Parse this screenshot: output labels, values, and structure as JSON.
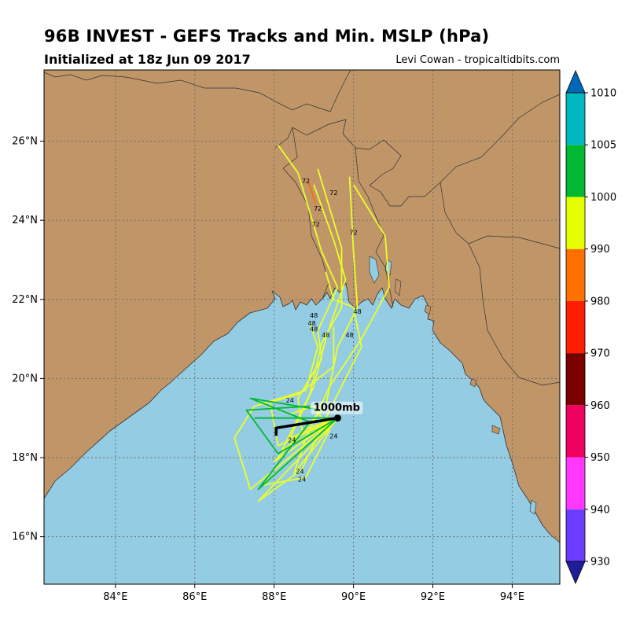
{
  "header": {
    "title": "96B INVEST - GEFS Tracks and Min. MSLP (hPa)",
    "subtitle": "Initialized at 18z Jun 09 2017",
    "credit": "Levi Cowan - tropicaltidbits.com"
  },
  "map": {
    "lon_range": [
      82.2,
      95.2
    ],
    "lat_range": [
      14.8,
      27.8
    ],
    "lon_ticks": [
      {
        "value": 84,
        "label": "84°E"
      },
      {
        "value": 86,
        "label": "86°E"
      },
      {
        "value": 88,
        "label": "88°E"
      },
      {
        "value": 90,
        "label": "90°E"
      },
      {
        "value": 92,
        "label": "92°E"
      },
      {
        "value": 94,
        "label": "94°E"
      }
    ],
    "lat_ticks": [
      {
        "value": 16,
        "label": "16°N"
      },
      {
        "value": 18,
        "label": "18°N"
      },
      {
        "value": 20,
        "label": "20°N"
      },
      {
        "value": 22,
        "label": "22°N"
      },
      {
        "value": 24,
        "label": "24°N"
      },
      {
        "value": 26,
        "label": "26°N"
      }
    ],
    "colors": {
      "land": "#c09669",
      "ocean": "#94cce3",
      "grid": "#6e6e6e",
      "coast": "#303030"
    }
  },
  "center": {
    "lon": 89.6,
    "lat": 19.0,
    "label": "1000mb"
  },
  "mean_track": [
    [
      89.6,
      19.0
    ],
    [
      88.05,
      18.75
    ],
    [
      88.05,
      18.55
    ]
  ],
  "tracks": [
    {
      "color": "#eaff2a",
      "points": [
        [
          89.6,
          19.0
        ],
        [
          88.7,
          18.7
        ],
        [
          88.6,
          19.5
        ],
        [
          89.2,
          20.5
        ],
        [
          89.1,
          21.2
        ],
        [
          89.6,
          22.3
        ],
        [
          89.2,
          23.2
        ],
        [
          88.9,
          24.2
        ],
        [
          88.6,
          25.2
        ],
        [
          88.1,
          25.9
        ]
      ]
    },
    {
      "color": "#eaff2a",
      "points": [
        [
          89.6,
          19.0
        ],
        [
          88.4,
          18.5
        ],
        [
          89.0,
          19.8
        ],
        [
          89.3,
          21.0
        ],
        [
          89.8,
          22.5
        ],
        [
          89.5,
          23.5
        ],
        [
          89.0,
          24.9
        ]
      ]
    },
    {
      "color": "#eaff2a",
      "points": [
        [
          89.6,
          19.0
        ],
        [
          88.2,
          18.2
        ],
        [
          88.9,
          19.6
        ],
        [
          89.2,
          20.9
        ],
        [
          89.7,
          21.8
        ],
        [
          89.7,
          23.3
        ],
        [
          89.1,
          25.3
        ]
      ]
    },
    {
      "color": "#eaff2a",
      "points": [
        [
          89.6,
          19.0
        ],
        [
          88.0,
          17.9
        ],
        [
          89.3,
          19.3
        ],
        [
          89.6,
          20.8
        ],
        [
          90.1,
          21.8
        ],
        [
          90.0,
          23.2
        ],
        [
          89.9,
          25.1
        ]
      ]
    },
    {
      "color": "#eaff2a",
      "points": [
        [
          89.6,
          19.0
        ],
        [
          88.5,
          17.6
        ],
        [
          88.8,
          18.5
        ],
        [
          89.4,
          19.8
        ],
        [
          90.2,
          21.0
        ],
        [
          90.9,
          22.3
        ],
        [
          90.8,
          23.6
        ],
        [
          90.0,
          24.9
        ]
      ]
    },
    {
      "color": "#eaff2a",
      "points": [
        [
          89.6,
          19.0
        ],
        [
          87.6,
          16.9
        ],
        [
          88.7,
          17.7
        ],
        [
          89.4,
          19.2
        ],
        [
          90.2,
          20.8
        ],
        [
          90.0,
          21.8
        ],
        [
          89.5,
          22.0
        ],
        [
          89.3,
          22.7
        ]
      ]
    },
    {
      "color": "#eaff2a",
      "points": [
        [
          89.6,
          19.0
        ],
        [
          87.4,
          17.2
        ],
        [
          87.0,
          18.5
        ],
        [
          87.5,
          19.3
        ],
        [
          88.8,
          19.7
        ],
        [
          89.1,
          20.8
        ],
        [
          88.9,
          21.4
        ]
      ]
    },
    {
      "color": "#eaff2a",
      "points": [
        [
          89.6,
          19.0
        ],
        [
          88.1,
          18.3
        ],
        [
          87.9,
          19.4
        ],
        [
          88.6,
          19.6
        ],
        [
          89.5,
          20.3
        ],
        [
          89.5,
          21.3
        ]
      ]
    },
    {
      "color": "#eaff2a",
      "points": [
        [
          89.6,
          19.0
        ],
        [
          87.7,
          17.3
        ],
        [
          88.8,
          17.5
        ],
        [
          89.4,
          18.7
        ],
        [
          89.0,
          19.3
        ],
        [
          88.4,
          19.1
        ],
        [
          87.6,
          19.4
        ]
      ]
    },
    {
      "color": "#00b832",
      "points": [
        [
          89.6,
          19.0
        ],
        [
          87.6,
          17.2
        ],
        [
          88.9,
          18.9
        ],
        [
          87.4,
          19.5
        ],
        [
          89.2,
          19.2
        ]
      ]
    },
    {
      "color": "#00b832",
      "points": [
        [
          89.6,
          19.0
        ],
        [
          88.1,
          18.1
        ],
        [
          87.3,
          19.2
        ],
        [
          88.9,
          19.3
        ]
      ]
    },
    {
      "color": "#00b832",
      "points": [
        [
          89.6,
          19.0
        ],
        [
          87.5,
          19.0
        ]
      ]
    },
    {
      "color": "#ff7000",
      "points": [
        [
          88.85,
          25.0
        ],
        [
          89.05,
          24.4
        ]
      ]
    }
  ],
  "hour_labels": [
    {
      "text": "72",
      "lon": 88.8,
      "lat": 25.0
    },
    {
      "text": "72",
      "lon": 89.5,
      "lat": 24.7
    },
    {
      "text": "72",
      "lon": 89.1,
      "lat": 24.3
    },
    {
      "text": "72",
      "lon": 89.05,
      "lat": 23.9
    },
    {
      "text": "72",
      "lon": 90.0,
      "lat": 23.7
    },
    {
      "text": "48",
      "lon": 89.0,
      "lat": 21.6
    },
    {
      "text": "48",
      "lon": 88.95,
      "lat": 21.4
    },
    {
      "text": "48",
      "lon": 89.0,
      "lat": 21.25
    },
    {
      "text": "48",
      "lon": 89.3,
      "lat": 21.1
    },
    {
      "text": "48",
      "lon": 90.1,
      "lat": 21.7
    },
    {
      "text": "48",
      "lon": 89.9,
      "lat": 21.1
    },
    {
      "text": "24",
      "lon": 88.4,
      "lat": 19.45
    },
    {
      "text": "24",
      "lon": 88.45,
      "lat": 18.45
    },
    {
      "text": "24",
      "lon": 89.5,
      "lat": 18.55
    },
    {
      "text": "24",
      "lon": 88.65,
      "lat": 17.65
    },
    {
      "text": "24",
      "lon": 88.7,
      "lat": 17.45
    }
  ],
  "colorbar": {
    "ticks": [
      "930",
      "940",
      "950",
      "960",
      "970",
      "980",
      "990",
      "1000",
      "1005",
      "1010"
    ],
    "segments": [
      {
        "color": "#1e1e9a"
      },
      {
        "color": "#6a3cff"
      },
      {
        "color": "#ff37ff"
      },
      {
        "color": "#f00061"
      },
      {
        "color": "#7a0000"
      },
      {
        "color": "#ff1e00"
      },
      {
        "color": "#ff7000"
      },
      {
        "color": "#e4ff00"
      },
      {
        "color": "#00b832"
      },
      {
        "color": "#00b7c1"
      },
      {
        "color": "#0068b8"
      }
    ]
  }
}
